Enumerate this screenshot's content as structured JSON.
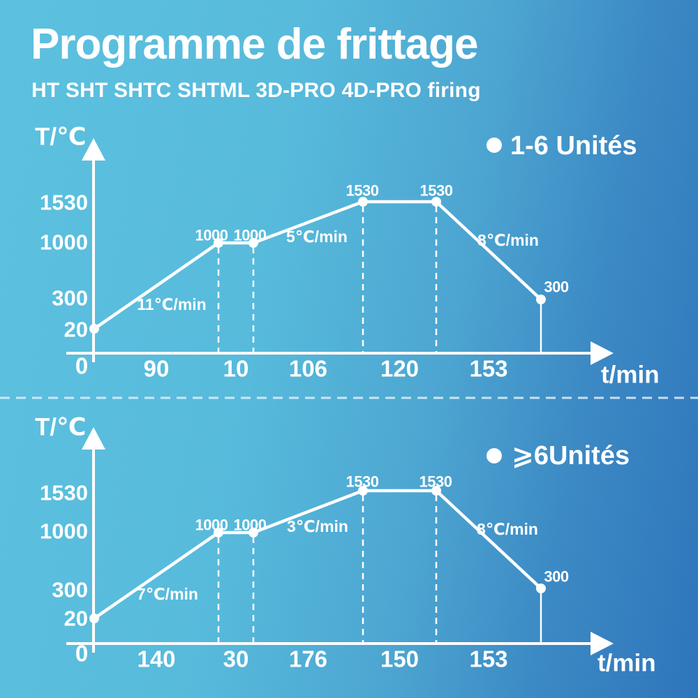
{
  "page": {
    "title": "Programme de frittage",
    "subtitle": "HT SHT SHTC SHTML 3D-PRO 4D-PRO firing"
  },
  "colors": {
    "background_left": "#58bddd",
    "background_right": "#2e72b9",
    "foreground": "#ffffff"
  },
  "chart_data": [
    {
      "type": "line",
      "legend": "1-6 Unités",
      "legend_bullet": "•",
      "ylabel": "T/℃",
      "xlabel": "t/min",
      "y_ticks": [
        "1530",
        "1000",
        "300",
        "20"
      ],
      "origin_label": "0",
      "x_segment_labels": [
        "90",
        "10",
        "106",
        "120",
        "153"
      ],
      "segments_min": [
        90,
        10,
        106,
        120,
        153
      ],
      "points_T": [
        20,
        1000,
        1000,
        1530,
        1530,
        300
      ],
      "point_labels": [
        "1000",
        "1000",
        "1530",
        "1530",
        "300"
      ],
      "rate_labels": [
        "11℃/min",
        "5℃/min",
        "8℃/min"
      ],
      "ylim": [
        0,
        1700
      ],
      "grid": false,
      "legend_position": "top-right"
    },
    {
      "type": "line",
      "legend": "⩾6Unités",
      "legend_bullet": "•",
      "ylabel": "T/℃",
      "xlabel": "t/min",
      "y_ticks": [
        "1530",
        "1000",
        "300",
        "20"
      ],
      "origin_label": "0",
      "x_segment_labels": [
        "140",
        "30",
        "176",
        "150",
        "153"
      ],
      "segments_min": [
        140,
        30,
        176,
        150,
        153
      ],
      "points_T": [
        20,
        1000,
        1000,
        1530,
        1530,
        300
      ],
      "point_labels": [
        "1000",
        "1000",
        "1530",
        "1530",
        "300"
      ],
      "rate_labels": [
        "7℃/min",
        "3℃/min",
        "8℃/min"
      ],
      "ylim": [
        0,
        1700
      ],
      "grid": false,
      "legend_position": "top-right"
    }
  ]
}
